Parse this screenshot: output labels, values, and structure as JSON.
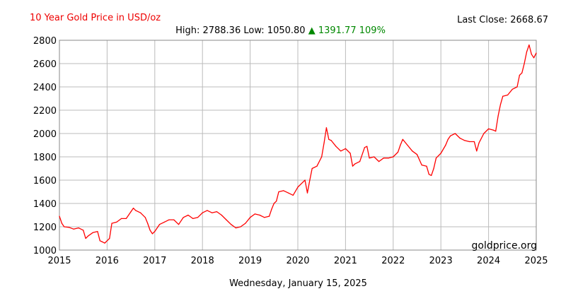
{
  "header": {
    "title": "10 Year Gold Price in USD/oz",
    "last_close_label": "Last Close:",
    "last_close": "2668.67",
    "high_label": "High:",
    "high": "2788.36",
    "low_label": "Low:",
    "low": "1050.80",
    "change_arrow": "▲",
    "change": "1391.77",
    "change_pct": "109%"
  },
  "footer": {
    "date": "Wednesday, January 15, 2025",
    "watermark": "goldprice.org"
  },
  "colors": {
    "line": "#ff0000",
    "title": "#ee0000",
    "change_up": "#008800",
    "grid": "#bbbbbb"
  },
  "chart_data": {
    "type": "line",
    "title": "10 Year Gold Price in USD/oz",
    "xlabel": "",
    "ylabel": "",
    "xlim": [
      2015,
      2025
    ],
    "ylim": [
      1000,
      2800
    ],
    "x_ticks": [
      "2015",
      "2016",
      "2017",
      "2018",
      "2019",
      "2020",
      "2021",
      "2022",
      "2023",
      "2024",
      "2025"
    ],
    "y_ticks": [
      "1000",
      "1200",
      "1400",
      "1600",
      "1800",
      "2000",
      "2200",
      "2400",
      "2600",
      "2800"
    ],
    "grid": true,
    "series": [
      {
        "x": [
          2015.0,
          2015.05,
          2015.1,
          2015.2,
          2015.3,
          2015.4,
          2015.5,
          2015.55,
          2015.6,
          2015.7,
          2015.8,
          2015.85,
          2015.9,
          2015.95,
          2016.0,
          2016.05,
          2016.1,
          2016.2,
          2016.3,
          2016.4,
          2016.5,
          2016.55,
          2016.6,
          2016.7,
          2016.8,
          2016.85,
          2016.9,
          2016.95,
          2017.0,
          2017.1,
          2017.2,
          2017.3,
          2017.4,
          2017.5,
          2017.6,
          2017.7,
          2017.8,
          2017.9,
          2018.0,
          2018.1,
          2018.2,
          2018.3,
          2018.4,
          2018.5,
          2018.6,
          2018.7,
          2018.8,
          2018.9,
          2019.0,
          2019.1,
          2019.2,
          2019.3,
          2019.4,
          2019.45,
          2019.5,
          2019.55,
          2019.6,
          2019.7,
          2019.8,
          2019.9,
          2020.0,
          2020.1,
          2020.15,
          2020.2,
          2020.25,
          2020.3,
          2020.4,
          2020.5,
          2020.55,
          2020.6,
          2020.65,
          2020.7,
          2020.8,
          2020.9,
          2021.0,
          2021.1,
          2021.15,
          2021.2,
          2021.3,
          2021.4,
          2021.45,
          2021.5,
          2021.6,
          2021.7,
          2021.8,
          2021.9,
          2022.0,
          2022.1,
          2022.15,
          2022.2,
          2022.3,
          2022.4,
          2022.5,
          2022.6,
          2022.7,
          2022.75,
          2022.8,
          2022.85,
          2022.9,
          2023.0,
          2023.1,
          2023.15,
          2023.2,
          2023.3,
          2023.4,
          2023.5,
          2023.6,
          2023.7,
          2023.75,
          2023.8,
          2023.9,
          2024.0,
          2024.1,
          2024.15,
          2024.2,
          2024.25,
          2024.3,
          2024.4,
          2024.5,
          2024.6,
          2024.65,
          2024.7,
          2024.75,
          2024.8,
          2024.85,
          2024.9,
          2024.95,
          2025.0
        ],
        "y": [
          1290,
          1230,
          1200,
          1195,
          1180,
          1190,
          1170,
          1100,
          1120,
          1150,
          1160,
          1080,
          1070,
          1060,
          1080,
          1100,
          1230,
          1240,
          1270,
          1270,
          1330,
          1360,
          1340,
          1320,
          1280,
          1230,
          1170,
          1140,
          1160,
          1220,
          1240,
          1260,
          1260,
          1220,
          1280,
          1300,
          1270,
          1280,
          1320,
          1340,
          1320,
          1330,
          1300,
          1260,
          1220,
          1190,
          1200,
          1230,
          1280,
          1310,
          1300,
          1280,
          1290,
          1350,
          1400,
          1420,
          1500,
          1510,
          1490,
          1470,
          1540,
          1580,
          1600,
          1490,
          1600,
          1700,
          1720,
          1800,
          1920,
          2050,
          1950,
          1940,
          1890,
          1850,
          1870,
          1830,
          1720,
          1740,
          1760,
          1880,
          1890,
          1790,
          1800,
          1760,
          1790,
          1790,
          1800,
          1840,
          1900,
          1950,
          1900,
          1850,
          1820,
          1730,
          1720,
          1650,
          1640,
          1700,
          1790,
          1830,
          1900,
          1950,
          1980,
          2000,
          1960,
          1940,
          1930,
          1930,
          1850,
          1920,
          2000,
          2040,
          2030,
          2020,
          2150,
          2250,
          2320,
          2330,
          2380,
          2400,
          2500,
          2520,
          2600,
          2700,
          2760,
          2680,
          2650,
          2690
        ]
      }
    ]
  }
}
